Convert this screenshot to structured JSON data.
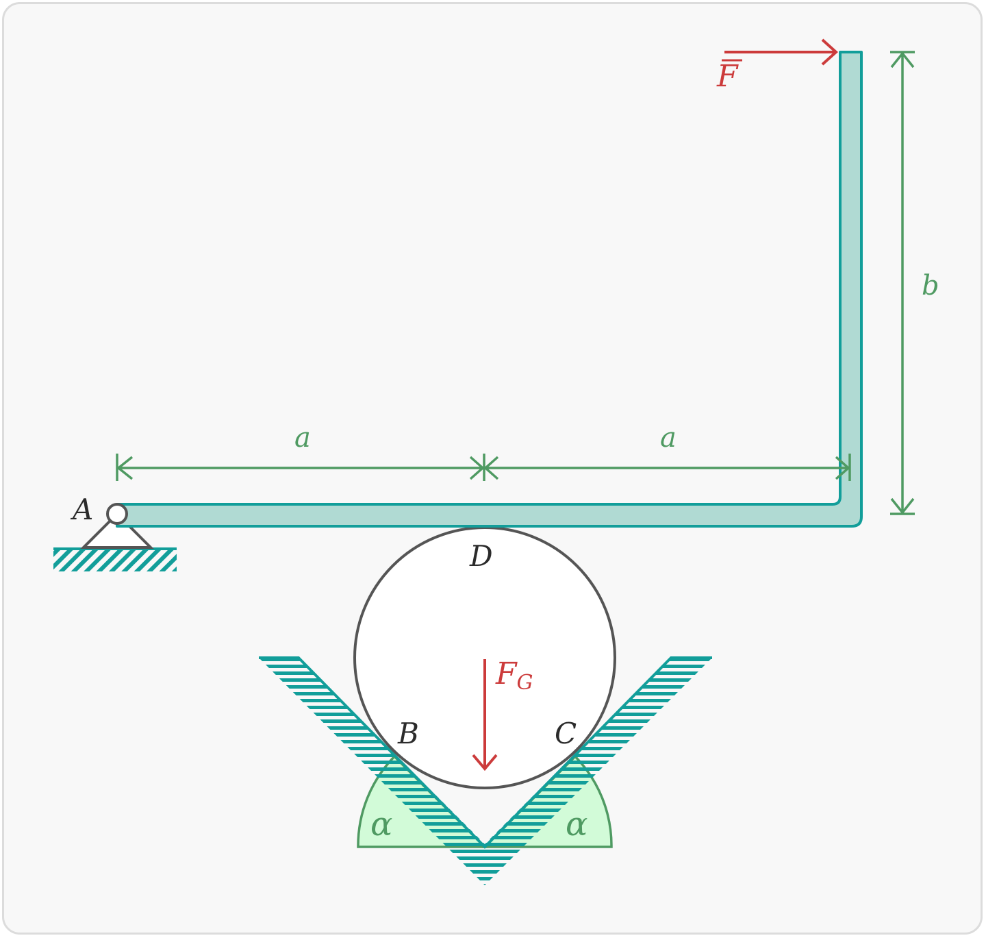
{
  "labels": {
    "point_a": "A",
    "point_b": "B",
    "point_c": "C",
    "point_d": "D",
    "force_f": "F",
    "weight_symbol": "F",
    "weight_subscript": "G",
    "dim_a_left": "a",
    "dim_a_right": "a",
    "dim_b": "b",
    "angle_left": "α",
    "angle_right": "α"
  },
  "colors": {
    "beam_fill": "#b0dad3",
    "beam_stroke": "#129e9a",
    "hatch": "#129e9a",
    "dimension": "#4f9a62",
    "force": "#cc3b3b",
    "outline": "#555555",
    "angle_fill": "#d2fbd8"
  }
}
